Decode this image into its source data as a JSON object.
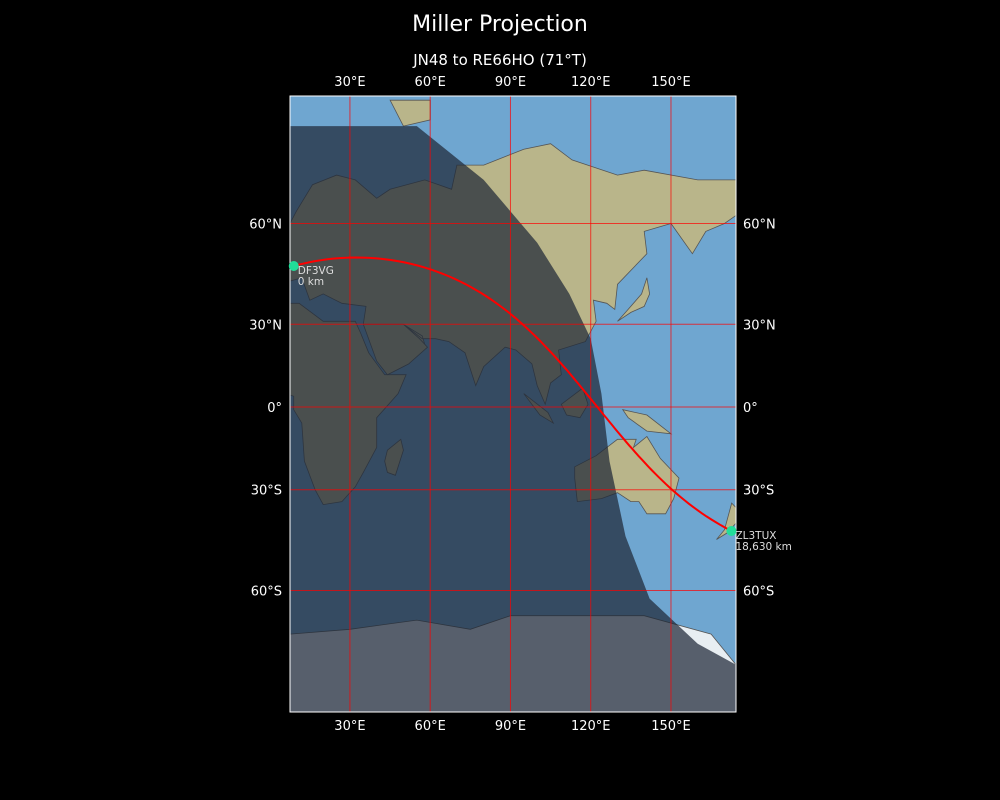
{
  "title": "Miller Projection",
  "subtitle": "JN48 to RE66HO (71°T)",
  "map": {
    "projection": "miller",
    "lon_range": [
      7.6,
      174.3
    ],
    "lat_range": [
      -83,
      84
    ],
    "lon_ticks": [
      {
        "value": 30,
        "label": "30°E"
      },
      {
        "value": 60,
        "label": "60°E"
      },
      {
        "value": 90,
        "label": "90°E"
      },
      {
        "value": 120,
        "label": "120°E"
      },
      {
        "value": 150,
        "label": "150°E"
      }
    ],
    "lat_ticks": [
      {
        "value": 60,
        "label": "60°N"
      },
      {
        "value": 30,
        "label": "30°N"
      },
      {
        "value": 0,
        "label": "0°"
      },
      {
        "value": -30,
        "label": "30°S"
      },
      {
        "value": -60,
        "label": "60°S"
      }
    ],
    "grid_color": "#ff0000",
    "path_color": "#ff0000",
    "marker_color": "#22dd99",
    "ocean_color": "#6fa6d0",
    "night_shade": "rgba(30,40,55,0.72)"
  },
  "stations": [
    {
      "call": "DF3VG",
      "distance": "0 km",
      "lon": 9.0,
      "lat": 48.5
    },
    {
      "call": "ZL3TUX",
      "distance": "18,630 km",
      "lon": 172.6,
      "lat": -43.4
    }
  ]
}
